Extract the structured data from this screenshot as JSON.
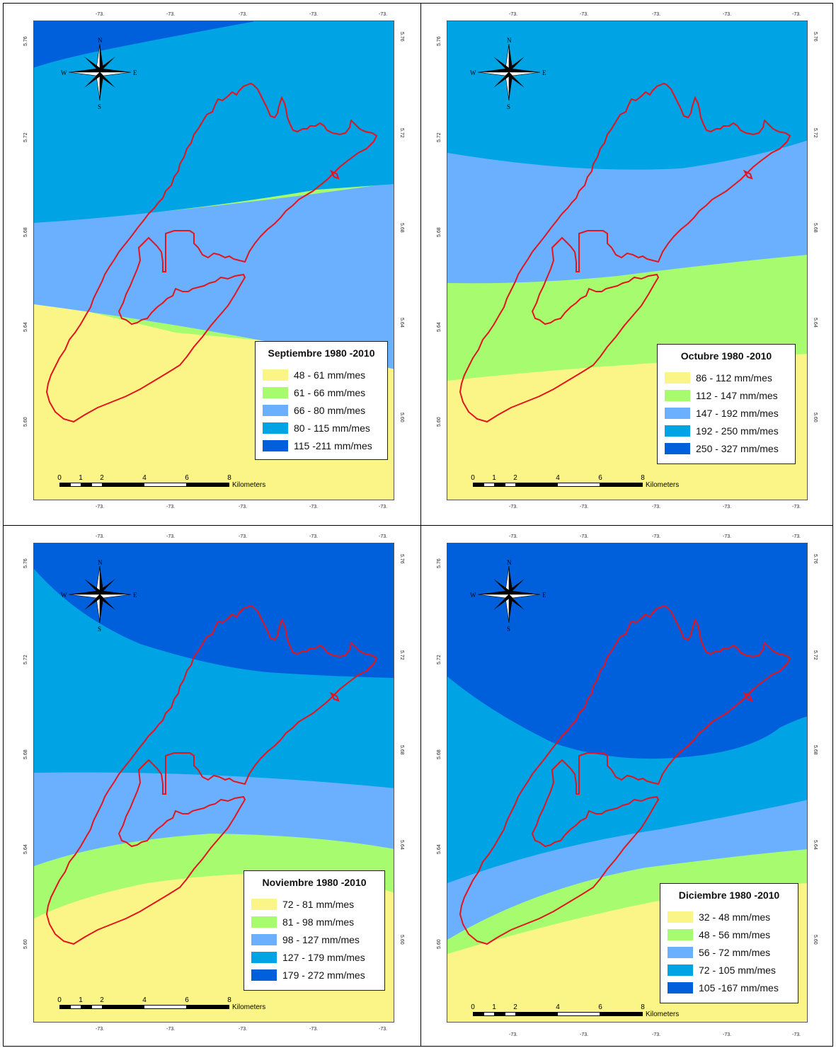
{
  "colors": {
    "class1": "#fbf587",
    "class2": "#a6fb6e",
    "class3": "#6bafff",
    "class4": "#00a3e3",
    "class5": "#0060dc",
    "boundary": "#e2151f"
  },
  "compass": {
    "n": "N",
    "s": "S",
    "e": "E",
    "w": "W"
  },
  "ticks": {
    "top": [
      "-73.",
      "-73.",
      "-73.",
      "-73.",
      "-73."
    ],
    "bottom": [
      "-73.",
      "-73.",
      "-73.",
      "-73.",
      "-73."
    ],
    "left": [
      "5.76",
      "5.72",
      "5.68",
      "5.64",
      "5.60"
    ],
    "right": [
      "5.76",
      "5.72",
      "5.68",
      "5.64",
      "5.60"
    ]
  },
  "scalebar": {
    "labels": [
      "0",
      "1",
      "2",
      "4",
      "6",
      "8"
    ],
    "unit": "Kilometers"
  },
  "maps": [
    {
      "title": "Septiembre 1980 -2010",
      "legend": [
        "48 - 61 mm/mes",
        "61 - 66 mm/mes",
        "66 - 80 mm/mes",
        "80 - 115 mm/mes",
        "115 -211 mm/mes"
      ]
    },
    {
      "title": "Octubre 1980 -2010",
      "legend": [
        "86 - 112 mm/mes",
        "112 - 147 mm/mes",
        "147 - 192 mm/mes",
        "192 - 250 mm/mes",
        "250 - 327 mm/mes"
      ]
    },
    {
      "title": "Noviembre 1980 -2010",
      "legend": [
        "72 - 81 mm/mes",
        "81 - 98 mm/mes",
        "98 - 127 mm/mes",
        "127 - 179 mm/mes",
        "179 - 272 mm/mes"
      ]
    },
    {
      "title": "Diciembre 1980 -2010",
      "legend": [
        "32 - 48 mm/mes",
        "48 - 56 mm/mes",
        "56 - 72 mm/mes",
        "72 - 105 mm/mes",
        "105 -167 mm/mes"
      ]
    }
  ]
}
